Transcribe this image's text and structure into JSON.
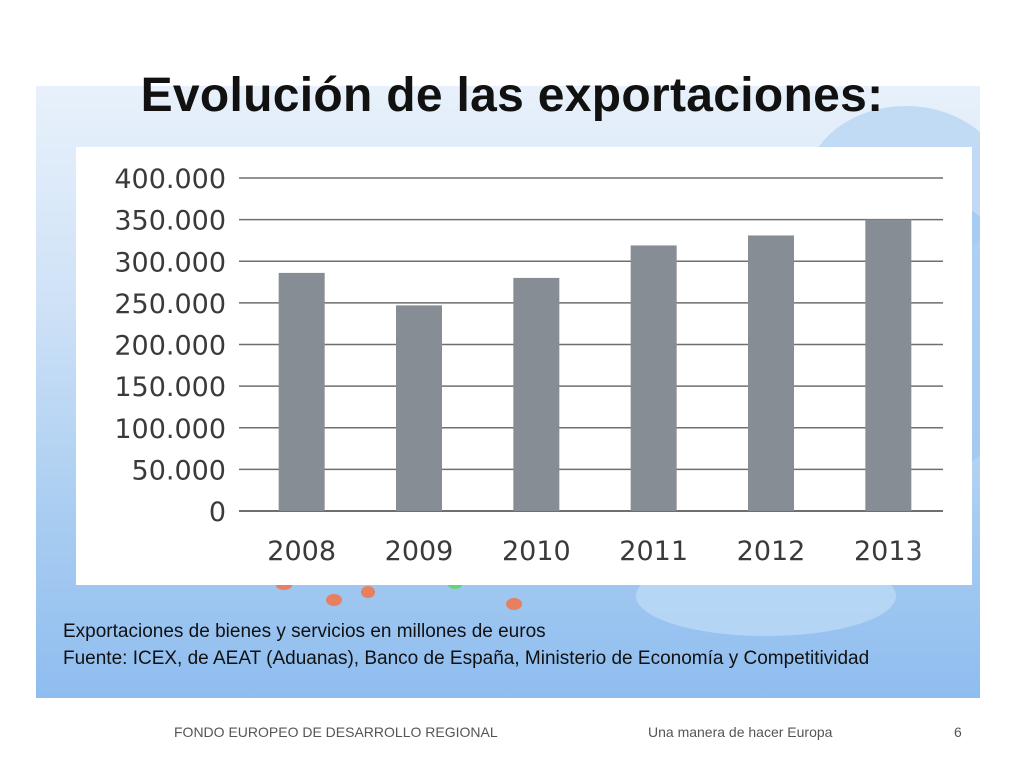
{
  "slide": {
    "title": "Evolución de las exportaciones:",
    "caption_line1": "Exportaciones de bienes y servicios en millones de euros",
    "caption_line2": "Fuente: ICEX, de AEAT (Aduanas), Banco de España, Ministerio de Economía y Competitividad",
    "footer_left": "FONDO EUROPEO DE DESARROLLO REGIONAL",
    "footer_middle": "Una manera de hacer Europa",
    "page_number": "6"
  },
  "colors": {
    "bar": "#878d94",
    "grid": "#6f6f6f"
  },
  "chart_data": {
    "type": "bar",
    "title": "",
    "xlabel": "",
    "ylabel": "",
    "categories": [
      "2008",
      "2009",
      "2010",
      "2011",
      "2012",
      "2013"
    ],
    "values": [
      286000,
      247000,
      280000,
      319000,
      331000,
      350000
    ],
    "ylim": [
      0,
      400000
    ],
    "yticks": [
      "0",
      "50.000",
      "100.000",
      "150.000",
      "200.000",
      "250.000",
      "300.000",
      "350.000",
      "400.000"
    ],
    "grid": true,
    "legend": "none"
  }
}
